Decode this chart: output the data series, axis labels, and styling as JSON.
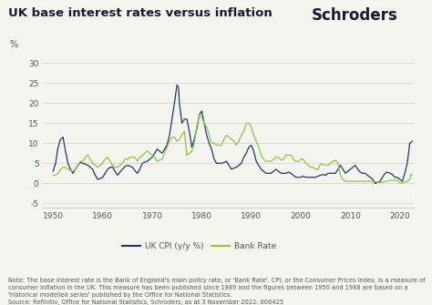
{
  "title": "UK base interest rates versus inflation",
  "brand": "Schroders",
  "ylabel": "%",
  "ylim": [
    -6,
    32
  ],
  "yticks": [
    -5,
    0,
    5,
    10,
    15,
    20,
    25,
    30
  ],
  "xlim": [
    1948,
    2023
  ],
  "xticks": [
    1950,
    1960,
    1970,
    1980,
    1990,
    2000,
    2010,
    2020
  ],
  "cpi_color": "#1b3a6b",
  "bank_color": "#8dc63f",
  "bg_color": "#f5f5f0",
  "plot_bg": "#f5f5f0",
  "grid_color": "#d0d0cc",
  "spine_color": "#cccccc",
  "tick_color": "#555555",
  "title_color": "#1a1a2e",
  "brand_color": "#1a1a2e",
  "note_color": "#555555",
  "note_text": "Note: The base interest rate is the Bank of England's main policy rate, or 'Bank Rate'. CPI, or the Consumer Prices Index, is a measure of\nconsumer inflation in the UK. This measure has been published since 1989 and the figures between 1950 and 1988 are based on a\n'historical modelled series' published by the Office for National Statistics.\nSource: Refinitiv, Office for National Statistics, Schroders, as at 3 November 2022. 606425",
  "legend_cpi": "UK CPI (y/y %)",
  "legend_bank": "Bank Rate",
  "cpi_data": [
    [
      1950,
      3.0
    ],
    [
      1950.5,
      5.0
    ],
    [
      1951,
      9.0
    ],
    [
      1951.5,
      11.0
    ],
    [
      1952,
      11.5
    ],
    [
      1952.5,
      8.0
    ],
    [
      1953,
      5.0
    ],
    [
      1953.5,
      3.5
    ],
    [
      1954,
      2.5
    ],
    [
      1954.5,
      3.5
    ],
    [
      1955,
      4.5
    ],
    [
      1955.5,
      5.2
    ],
    [
      1956,
      5.0
    ],
    [
      1956.5,
      4.8
    ],
    [
      1957,
      4.5
    ],
    [
      1957.5,
      4.0
    ],
    [
      1958,
      3.5
    ],
    [
      1958.5,
      2.0
    ],
    [
      1959,
      1.0
    ],
    [
      1959.5,
      1.2
    ],
    [
      1960,
      1.5
    ],
    [
      1960.5,
      2.5
    ],
    [
      1961,
      3.5
    ],
    [
      1961.5,
      4.0
    ],
    [
      1962,
      4.0
    ],
    [
      1962.5,
      3.0
    ],
    [
      1963,
      2.0
    ],
    [
      1963.5,
      2.8
    ],
    [
      1964,
      3.5
    ],
    [
      1964.5,
      4.2
    ],
    [
      1965,
      4.5
    ],
    [
      1965.5,
      4.3
    ],
    [
      1966,
      4.0
    ],
    [
      1966.5,
      3.2
    ],
    [
      1967,
      2.5
    ],
    [
      1967.5,
      3.5
    ],
    [
      1968,
      5.0
    ],
    [
      1968.5,
      5.3
    ],
    [
      1969,
      5.5
    ],
    [
      1969.5,
      6.0
    ],
    [
      1970,
      6.5
    ],
    [
      1970.5,
      7.5
    ],
    [
      1971,
      8.5
    ],
    [
      1971.5,
      8.0
    ],
    [
      1972,
      7.5
    ],
    [
      1972.5,
      8.5
    ],
    [
      1973,
      9.5
    ],
    [
      1973.5,
      12.0
    ],
    [
      1974,
      16.0
    ],
    [
      1974.5,
      20.0
    ],
    [
      1975,
      24.5
    ],
    [
      1975.3,
      24.0
    ],
    [
      1975.5,
      20.0
    ],
    [
      1976,
      15.0
    ],
    [
      1976.5,
      16.0
    ],
    [
      1977,
      16.0
    ],
    [
      1977.5,
      13.0
    ],
    [
      1978,
      9.0
    ],
    [
      1978.5,
      11.0
    ],
    [
      1979,
      13.5
    ],
    [
      1979.5,
      17.0
    ],
    [
      1980,
      18.0
    ],
    [
      1980.5,
      15.0
    ],
    [
      1981,
      12.0
    ],
    [
      1981.5,
      10.0
    ],
    [
      1982,
      8.5
    ],
    [
      1982.5,
      6.0
    ],
    [
      1983,
      5.0
    ],
    [
      1983.5,
      5.0
    ],
    [
      1984,
      5.0
    ],
    [
      1984.5,
      5.2
    ],
    [
      1985,
      5.5
    ],
    [
      1985.5,
      4.5
    ],
    [
      1986,
      3.5
    ],
    [
      1986.5,
      3.8
    ],
    [
      1987,
      4.0
    ],
    [
      1987.5,
      4.5
    ],
    [
      1988,
      5.0
    ],
    [
      1988.5,
      6.5
    ],
    [
      1989,
      7.5
    ],
    [
      1989.5,
      9.0
    ],
    [
      1990,
      9.5
    ],
    [
      1990.5,
      8.0
    ],
    [
      1991,
      5.5
    ],
    [
      1991.5,
      4.5
    ],
    [
      1992,
      3.5
    ],
    [
      1992.5,
      3.0
    ],
    [
      1993,
      2.5
    ],
    [
      1993.5,
      2.5
    ],
    [
      1994,
      2.5
    ],
    [
      1994.5,
      3.0
    ],
    [
      1995,
      3.5
    ],
    [
      1995.5,
      3.0
    ],
    [
      1996,
      2.5
    ],
    [
      1996.5,
      2.5
    ],
    [
      1997,
      2.5
    ],
    [
      1997.5,
      2.8
    ],
    [
      1998,
      2.5
    ],
    [
      1998.5,
      2.0
    ],
    [
      1999,
      1.5
    ],
    [
      1999.5,
      1.5
    ],
    [
      2000,
      1.5
    ],
    [
      2000.5,
      1.8
    ],
    [
      2001,
      1.5
    ],
    [
      2001.5,
      1.5
    ],
    [
      2002,
      1.5
    ],
    [
      2002.5,
      1.5
    ],
    [
      2003,
      1.5
    ],
    [
      2003.5,
      1.8
    ],
    [
      2004,
      2.0
    ],
    [
      2004.5,
      2.2
    ],
    [
      2005,
      2.0
    ],
    [
      2005.5,
      2.5
    ],
    [
      2006,
      2.5
    ],
    [
      2006.5,
      2.5
    ],
    [
      2007,
      2.5
    ],
    [
      2007.5,
      3.5
    ],
    [
      2008,
      4.5
    ],
    [
      2008.5,
      3.5
    ],
    [
      2009,
      2.5
    ],
    [
      2009.5,
      3.0
    ],
    [
      2010,
      3.5
    ],
    [
      2010.5,
      4.0
    ],
    [
      2011,
      4.5
    ],
    [
      2011.5,
      3.5
    ],
    [
      2012,
      2.8
    ],
    [
      2012.5,
      2.5
    ],
    [
      2013,
      2.5
    ],
    [
      2013.5,
      2.0
    ],
    [
      2014,
      1.5
    ],
    [
      2014.5,
      1.0
    ],
    [
      2015,
      0.0
    ],
    [
      2015.5,
      0.2
    ],
    [
      2016,
      0.5
    ],
    [
      2016.5,
      1.5
    ],
    [
      2017,
      2.5
    ],
    [
      2017.5,
      2.8
    ],
    [
      2018,
      2.5
    ],
    [
      2018.5,
      2.2
    ],
    [
      2019,
      1.5
    ],
    [
      2019.5,
      1.5
    ],
    [
      2020,
      1.0
    ],
    [
      2020.5,
      0.5
    ],
    [
      2021,
      2.5
    ],
    [
      2021.5,
      5.0
    ],
    [
      2022,
      10.0
    ],
    [
      2022.5,
      10.5
    ]
  ],
  "bank_data": [
    [
      1950,
      2.0
    ],
    [
      1950.5,
      2.0
    ],
    [
      1951,
      2.5
    ],
    [
      1951.5,
      3.5
    ],
    [
      1952,
      4.0
    ],
    [
      1952.5,
      4.0
    ],
    [
      1953,
      3.5
    ],
    [
      1953.5,
      3.2
    ],
    [
      1954,
      3.0
    ],
    [
      1954.5,
      3.5
    ],
    [
      1955,
      4.5
    ],
    [
      1955.5,
      5.5
    ],
    [
      1956,
      5.5
    ],
    [
      1956.5,
      6.5
    ],
    [
      1957,
      7.0
    ],
    [
      1957.5,
      6.0
    ],
    [
      1958,
      5.0
    ],
    [
      1958.5,
      4.5
    ],
    [
      1959,
      4.0
    ],
    [
      1959.5,
      4.5
    ],
    [
      1960,
      5.0
    ],
    [
      1960.5,
      6.0
    ],
    [
      1961,
      6.5
    ],
    [
      1961.5,
      5.5
    ],
    [
      1962,
      4.5
    ],
    [
      1962.5,
      4.0
    ],
    [
      1963,
      4.0
    ],
    [
      1963.5,
      4.5
    ],
    [
      1964,
      5.0
    ],
    [
      1964.5,
      6.0
    ],
    [
      1965,
      6.0
    ],
    [
      1965.5,
      6.5
    ],
    [
      1966,
      6.5
    ],
    [
      1966.5,
      6.5
    ],
    [
      1967,
      5.5
    ],
    [
      1967.5,
      6.5
    ],
    [
      1968,
      7.0
    ],
    [
      1968.5,
      7.5
    ],
    [
      1969,
      8.0
    ],
    [
      1969.5,
      7.5
    ],
    [
      1970,
      7.0
    ],
    [
      1970.5,
      6.5
    ],
    [
      1971,
      5.5
    ],
    [
      1971.5,
      5.8
    ],
    [
      1972,
      6.0
    ],
    [
      1972.5,
      7.5
    ],
    [
      1973,
      9.0
    ],
    [
      1973.5,
      10.5
    ],
    [
      1974,
      11.5
    ],
    [
      1974.5,
      11.5
    ],
    [
      1975,
      10.5
    ],
    [
      1975.5,
      11.0
    ],
    [
      1976,
      12.0
    ],
    [
      1976.5,
      13.0
    ],
    [
      1977,
      7.0
    ],
    [
      1977.5,
      7.5
    ],
    [
      1978,
      8.0
    ],
    [
      1978.5,
      10.0
    ],
    [
      1979,
      14.0
    ],
    [
      1979.5,
      17.0
    ],
    [
      1980,
      16.5
    ],
    [
      1980.5,
      15.0
    ],
    [
      1981,
      14.0
    ],
    [
      1981.5,
      12.0
    ],
    [
      1982,
      10.0
    ],
    [
      1982.5,
      10.0
    ],
    [
      1983,
      9.5
    ],
    [
      1983.5,
      9.5
    ],
    [
      1984,
      9.5
    ],
    [
      1984.5,
      11.0
    ],
    [
      1985,
      12.0
    ],
    [
      1985.5,
      11.5
    ],
    [
      1986,
      11.0
    ],
    [
      1986.5,
      10.5
    ],
    [
      1987,
      9.5
    ],
    [
      1987.5,
      10.5
    ],
    [
      1988,
      12.0
    ],
    [
      1988.5,
      13.0
    ],
    [
      1989,
      15.0
    ],
    [
      1989.5,
      15.0
    ],
    [
      1990,
      14.0
    ],
    [
      1990.5,
      12.0
    ],
    [
      1991,
      10.5
    ],
    [
      1991.5,
      9.0
    ],
    [
      1992,
      7.0
    ],
    [
      1992.5,
      6.0
    ],
    [
      1993,
      5.5
    ],
    [
      1993.5,
      5.5
    ],
    [
      1994,
      5.5
    ],
    [
      1994.5,
      6.0
    ],
    [
      1995,
      6.5
    ],
    [
      1995.5,
      6.5
    ],
    [
      1996,
      5.75
    ],
    [
      1996.5,
      6.0
    ],
    [
      1997,
      7.0
    ],
    [
      1997.5,
      7.0
    ],
    [
      1998,
      7.0
    ],
    [
      1998.5,
      6.0
    ],
    [
      1999,
      5.5
    ],
    [
      1999.5,
      5.5
    ],
    [
      2000,
      6.0
    ],
    [
      2000.5,
      6.0
    ],
    [
      2001,
      5.0
    ],
    [
      2001.5,
      4.5
    ],
    [
      2002,
      4.0
    ],
    [
      2002.5,
      4.0
    ],
    [
      2003,
      3.5
    ],
    [
      2003.5,
      3.5
    ],
    [
      2004,
      4.75
    ],
    [
      2004.5,
      4.75
    ],
    [
      2005,
      4.5
    ],
    [
      2005.5,
      4.5
    ],
    [
      2006,
      5.0
    ],
    [
      2006.5,
      5.5
    ],
    [
      2007,
      5.75
    ],
    [
      2007.5,
      5.0
    ],
    [
      2008,
      2.0
    ],
    [
      2008.5,
      1.0
    ],
    [
      2009,
      0.5
    ],
    [
      2009.5,
      0.5
    ],
    [
      2010,
      0.5
    ],
    [
      2010.5,
      0.5
    ],
    [
      2011,
      0.5
    ],
    [
      2011.5,
      0.5
    ],
    [
      2012,
      0.5
    ],
    [
      2012.5,
      0.5
    ],
    [
      2013,
      0.5
    ],
    [
      2013.5,
      0.5
    ],
    [
      2014,
      0.5
    ],
    [
      2014.5,
      0.5
    ],
    [
      2015,
      0.5
    ],
    [
      2015.5,
      0.25
    ],
    [
      2016,
      0.25
    ],
    [
      2016.5,
      0.25
    ],
    [
      2017,
      0.5
    ],
    [
      2017.5,
      0.5
    ],
    [
      2018,
      0.75
    ],
    [
      2018.5,
      0.75
    ],
    [
      2019,
      0.75
    ],
    [
      2019.5,
      0.75
    ],
    [
      2020,
      0.1
    ],
    [
      2020.5,
      0.1
    ],
    [
      2021,
      0.25
    ],
    [
      2021.5,
      0.5
    ],
    [
      2022,
      1.0
    ],
    [
      2022.3,
      2.25
    ],
    [
      2022.5,
      2.25
    ]
  ]
}
